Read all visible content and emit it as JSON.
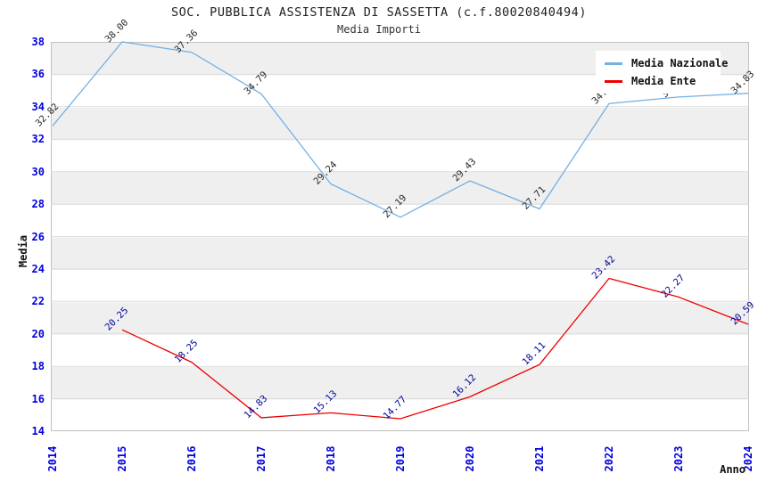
{
  "header": {
    "title": "SOC. PUBBLICA ASSISTENZA DI SASSETTA (c.f.80020840494)",
    "subtitle": "Media Importi"
  },
  "axes": {
    "y_label": "Media",
    "x_label": "Anno",
    "y_ticks": [
      38,
      36,
      34,
      32,
      30,
      28,
      26,
      24,
      22,
      20,
      18,
      16,
      14
    ],
    "x_ticks": [
      "2014",
      "2015",
      "2016",
      "2017",
      "2018",
      "2019",
      "2020",
      "2021",
      "2022",
      "2023",
      "2024"
    ]
  },
  "legend": {
    "items": [
      {
        "label": "Media Nazionale",
        "color": "#74b0e4"
      },
      {
        "label": "Media Ente",
        "color": "#ee0000"
      }
    ]
  },
  "colors": {
    "tick_label": "#0000dd",
    "band": "#efefef",
    "grid": "#dcdcdc",
    "plot_border": "#c0c0c0"
  },
  "chart_data": {
    "type": "line",
    "title": "SOC. PUBBLICA ASSISTENZA DI SASSETTA (c.f.80020840494)",
    "subtitle": "Media Importi",
    "xlabel": "Anno",
    "ylabel": "Media",
    "ylim": [
      14,
      38
    ],
    "grid": "horizontal-bands",
    "legend_position": "top-right-inside",
    "x": [
      2014,
      2015,
      2016,
      2017,
      2018,
      2019,
      2020,
      2021,
      2022,
      2023,
      2024
    ],
    "series": [
      {
        "name": "Media Nazionale",
        "color": "#74b0e4",
        "label_color": "#262626",
        "values": [
          32.82,
          38.0,
          37.36,
          34.79,
          29.24,
          27.19,
          29.43,
          27.71,
          34.2,
          34.6,
          34.83
        ]
      },
      {
        "name": "Media Ente",
        "color": "#ee0000",
        "label_color": "#000099",
        "values": [
          null,
          20.25,
          18.25,
          14.83,
          15.13,
          14.77,
          16.12,
          18.11,
          23.42,
          22.27,
          20.59
        ]
      }
    ]
  }
}
